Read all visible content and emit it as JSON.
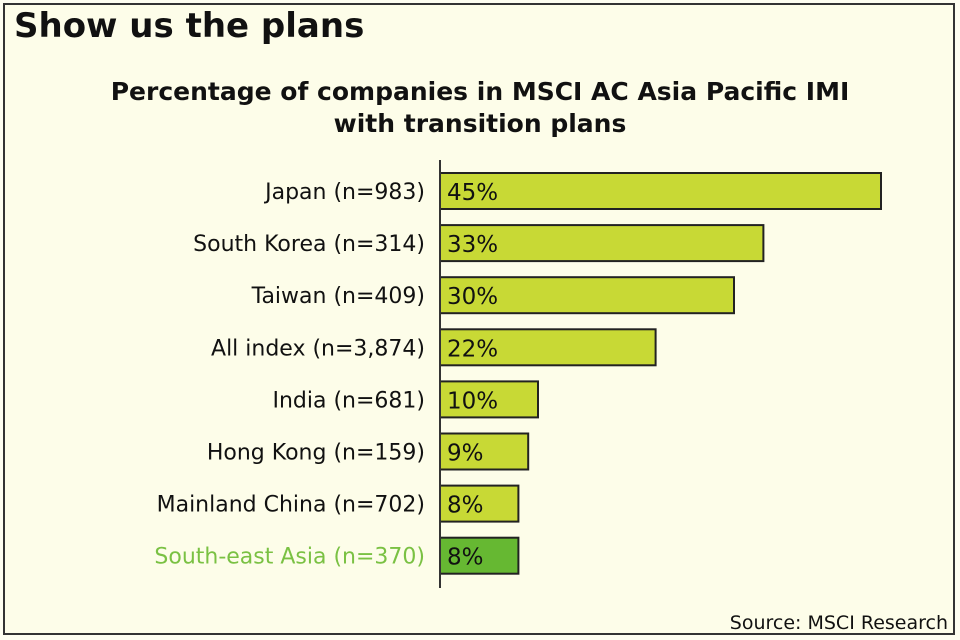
{
  "headline": "Show us the plans",
  "source": "Source: MSCI Research",
  "colors": {
    "bar": "#c8d935",
    "highlight_bar": "#66b832",
    "highlight_label": "#7ac143",
    "background": "#fdfde9"
  },
  "chart_data": {
    "type": "bar",
    "orientation": "horizontal",
    "title": "Percentage of companies in MSCI AC Asia Pacific IMI with transition plans",
    "title_lines": [
      "Percentage of companies in MSCI AC Asia Pacific IMI",
      "with transition plans"
    ],
    "categories": [
      "Japan (n=983)",
      "South Korea (n=314)",
      "Taiwan (n=409)",
      "All index (n=3,874)",
      "India (n=681)",
      "Hong Kong (n=159)",
      "Mainland China (n=702)",
      "South-east Asia (n=370)"
    ],
    "values": [
      45,
      33,
      30,
      22,
      10,
      9,
      8,
      8
    ],
    "data_labels": [
      "45%",
      "33%",
      "30%",
      "22%",
      "10%",
      "9%",
      "8%",
      "8%"
    ],
    "highlighted_category": "South-east Asia (n=370)",
    "unit": "%",
    "xlim": [
      0,
      45
    ],
    "grid": false
  }
}
